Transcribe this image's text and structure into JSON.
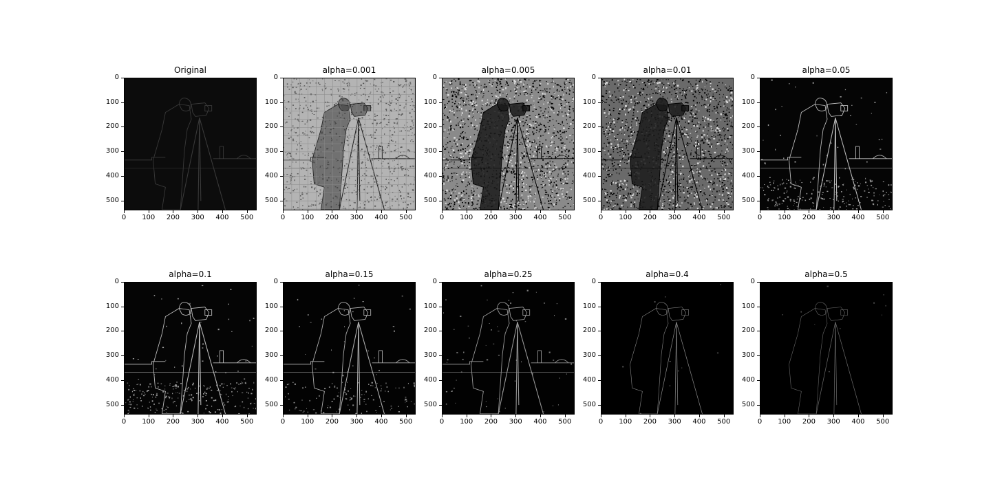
{
  "figure": {
    "background": "#ffffff",
    "panels": [
      {
        "title": "Original",
        "style": "dim"
      },
      {
        "title": "alpha=0.001",
        "style": "light"
      },
      {
        "title": "alpha=0.005",
        "style": "noisy"
      },
      {
        "title": "alpha=0.01",
        "style": "noisy2"
      },
      {
        "title": "alpha=0.05",
        "style": "edges"
      },
      {
        "title": "alpha=0.1",
        "style": "edges"
      },
      {
        "title": "alpha=0.15",
        "style": "edges2"
      },
      {
        "title": "alpha=0.25",
        "style": "edges3"
      },
      {
        "title": "alpha=0.4",
        "style": "sparse"
      },
      {
        "title": "alpha=0.5",
        "style": "sparse2"
      }
    ],
    "y_ticks": [
      "0",
      "100",
      "200",
      "300",
      "400",
      "500"
    ],
    "x_ticks": [
      "0",
      "100",
      "200",
      "300",
      "400",
      "500"
    ],
    "axis_max": 540
  }
}
